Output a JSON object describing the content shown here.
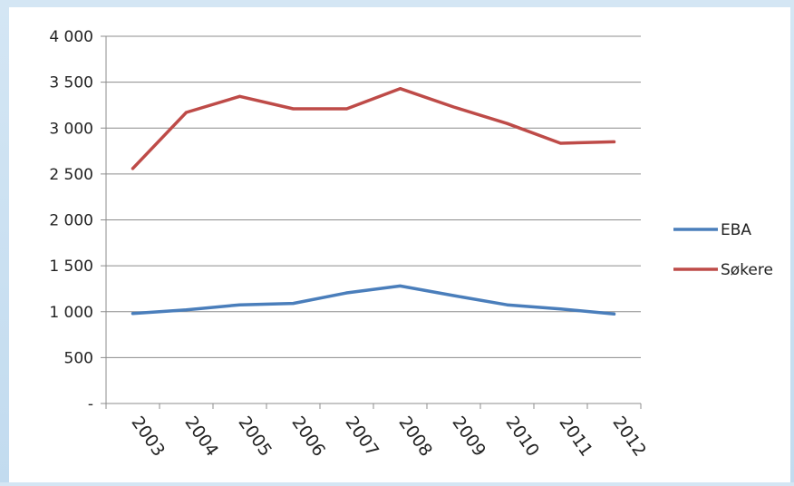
{
  "chart_data": {
    "type": "line",
    "categories": [
      "2003",
      "2004",
      "2005",
      "2006",
      "2007",
      "2008",
      "2009",
      "2010",
      "2011",
      "2012"
    ],
    "series": [
      {
        "name": "EBA",
        "color": "#4a7ebb",
        "values": [
          980,
          1020,
          1075,
          1090,
          1205,
          1280,
          1175,
          1075,
          1030,
          975
        ]
      },
      {
        "name": "Søkere",
        "color": "#be4b48",
        "values": [
          2560,
          3170,
          3345,
          3210,
          3210,
          3430,
          3230,
          3050,
          2835,
          2850
        ]
      }
    ],
    "ylim": [
      0,
      4000
    ],
    "yticks": [
      0,
      500,
      1000,
      1500,
      2000,
      2500,
      3000,
      3500,
      4000
    ],
    "ytick_labels": [
      "-",
      "500",
      "1 000",
      "1 500",
      "2 000",
      "2 500",
      "3 000",
      "3 500",
      "4 000"
    ],
    "grid": true,
    "legend_position": "right"
  }
}
